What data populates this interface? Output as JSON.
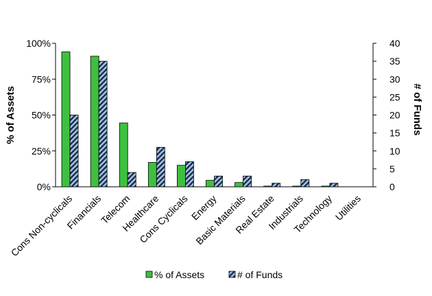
{
  "chart_data": {
    "type": "bar",
    "categories": [
      "Cons Non-cyclicals",
      "Financials",
      "Telecom",
      "Healthcare",
      "Cons Cyclicals",
      "Energy",
      "Basic Materials",
      "Real Estate",
      "Industrials",
      "Technology",
      "Utilities"
    ],
    "series": [
      {
        "name": "% of Assets",
        "axis": "left",
        "color": "#3fbf3f",
        "values": [
          94,
          91,
          44.5,
          17,
          15,
          4.5,
          3,
          0.5,
          0.5,
          0.5,
          0
        ]
      },
      {
        "name": "# of Funds",
        "axis": "right",
        "color": "#9dc3e6",
        "pattern": "diagonal-stripes",
        "values": [
          20,
          35,
          4,
          11,
          7,
          3,
          3,
          1,
          2,
          1,
          0
        ]
      }
    ],
    "y_left": {
      "label": "% of Assets",
      "ylim": [
        0,
        100
      ],
      "ticks": [
        "0%",
        "25%",
        "50%",
        "75%",
        "100%"
      ]
    },
    "y_right": {
      "label": "# of Funds",
      "ylim": [
        0,
        40
      ],
      "ticks": [
        "0",
        "5",
        "10",
        "15",
        "20",
        "25",
        "30",
        "35",
        "40"
      ]
    },
    "grid": false,
    "legend_position": "bottom"
  }
}
